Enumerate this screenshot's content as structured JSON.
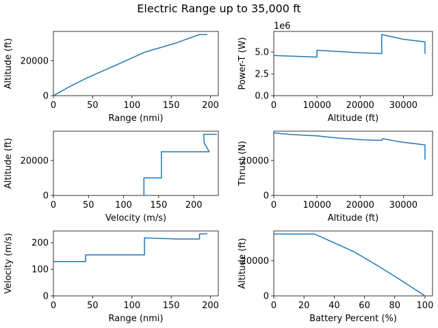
{
  "suptitle": "Electric Range up to 35,000 ft",
  "colors": {
    "line": "#1f77b4",
    "axis": "#000000",
    "background": "#ffffff"
  },
  "chart_data": [
    {
      "type": "line",
      "name": "altitude-vs-range",
      "xlabel": "Range (nmi)",
      "ylabel": "Altitude (ft)",
      "xlim": [
        0,
        210
      ],
      "ylim": [
        0,
        36750
      ],
      "xticks": [
        0,
        50,
        100,
        150,
        200
      ],
      "yticks": [
        0,
        20000
      ],
      "scale_label": "",
      "grid": false,
      "points": [
        [
          0,
          0
        ],
        [
          20,
          5000
        ],
        [
          42,
          10000
        ],
        [
          80,
          17500
        ],
        [
          117,
          25000
        ],
        [
          155,
          30000
        ],
        [
          186,
          35000
        ],
        [
          196,
          35000
        ]
      ]
    },
    {
      "type": "line",
      "name": "power-vs-altitude",
      "xlabel": "Altitude (ft)",
      "ylabel": "Power-T (W)",
      "xlim": [
        0,
        36750
      ],
      "ylim": [
        0,
        7350000
      ],
      "xticks": [
        0,
        10000,
        20000,
        30000
      ],
      "yticks": [
        0,
        2500000,
        5000000
      ],
      "ytick_labels": [
        "0.0",
        "2.5",
        "5.0"
      ],
      "scale_label": "1e6",
      "grid": false,
      "points": [
        [
          0,
          4600000
        ],
        [
          5000,
          4500000
        ],
        [
          10000,
          4420000
        ],
        [
          10000,
          5200000
        ],
        [
          15000,
          5050000
        ],
        [
          20000,
          4900000
        ],
        [
          25000,
          4820000
        ],
        [
          25000,
          7000000
        ],
        [
          30000,
          6450000
        ],
        [
          35000,
          6150000
        ],
        [
          35000,
          4800000
        ]
      ]
    },
    {
      "type": "line",
      "name": "altitude-vs-velocity",
      "xlabel": "Velocity (m/s)",
      "ylabel": "Altitude (ft)",
      "xlim": [
        0,
        235
      ],
      "ylim": [
        0,
        36750
      ],
      "xticks": [
        0,
        50,
        100,
        150,
        200
      ],
      "yticks": [
        0,
        20000
      ],
      "scale_label": "",
      "grid": false,
      "points": [
        [
          129,
          0
        ],
        [
          129,
          10000
        ],
        [
          154,
          10000
        ],
        [
          154,
          25000
        ],
        [
          222,
          25000
        ],
        [
          215,
          30000
        ],
        [
          214,
          35000
        ],
        [
          233,
          35000
        ]
      ]
    },
    {
      "type": "line",
      "name": "thrust-vs-altitude",
      "xlabel": "Altitude (ft)",
      "ylabel": "Thrust (N)",
      "xlim": [
        0,
        36750
      ],
      "ylim": [
        0,
        36750
      ],
      "xticks": [
        0,
        10000,
        20000,
        30000
      ],
      "yticks": [
        0,
        20000
      ],
      "scale_label": "",
      "grid": false,
      "points": [
        [
          0,
          35800
        ],
        [
          2000,
          35300
        ],
        [
          4000,
          34900
        ],
        [
          6000,
          34600
        ],
        [
          8000,
          34300
        ],
        [
          10000,
          34100
        ],
        [
          12000,
          33500
        ],
        [
          15000,
          32800
        ],
        [
          18000,
          32300
        ],
        [
          21000,
          31800
        ],
        [
          25000,
          31500
        ],
        [
          25200,
          32500
        ],
        [
          28000,
          31200
        ],
        [
          30000,
          30400
        ],
        [
          33000,
          29500
        ],
        [
          35000,
          28900
        ],
        [
          35000,
          20500
        ]
      ]
    },
    {
      "type": "line",
      "name": "velocity-vs-range",
      "xlabel": "Range (nmi)",
      "ylabel": "Velocity (m/s)",
      "xlim": [
        0,
        210
      ],
      "ylim": [
        0,
        244
      ],
      "xticks": [
        0,
        50,
        100,
        150,
        200
      ],
      "yticks": [
        0,
        100,
        200
      ],
      "scale_label": "",
      "grid": false,
      "points": [
        [
          0,
          129
        ],
        [
          41,
          129
        ],
        [
          41,
          154
        ],
        [
          116,
          154
        ],
        [
          116,
          218
        ],
        [
          155,
          214
        ],
        [
          186,
          214
        ],
        [
          186,
          233
        ],
        [
          196,
          233
        ]
      ]
    },
    {
      "type": "line",
      "name": "altitude-vs-battery",
      "xlabel": "Battery Percent (%)",
      "ylabel": "Altitude (ft)",
      "xlim": [
        0,
        105
      ],
      "ylim": [
        0,
        36750
      ],
      "xticks": [
        0,
        20,
        40,
        60,
        80,
        100
      ],
      "yticks": [
        0,
        20000
      ],
      "scale_label": "",
      "grid": false,
      "points": [
        [
          0,
          35000
        ],
        [
          27,
          35000
        ],
        [
          40,
          30000
        ],
        [
          53,
          25000
        ],
        [
          68,
          17500
        ],
        [
          82,
          10000
        ],
        [
          91,
          5000
        ],
        [
          100,
          0
        ]
      ]
    }
  ]
}
